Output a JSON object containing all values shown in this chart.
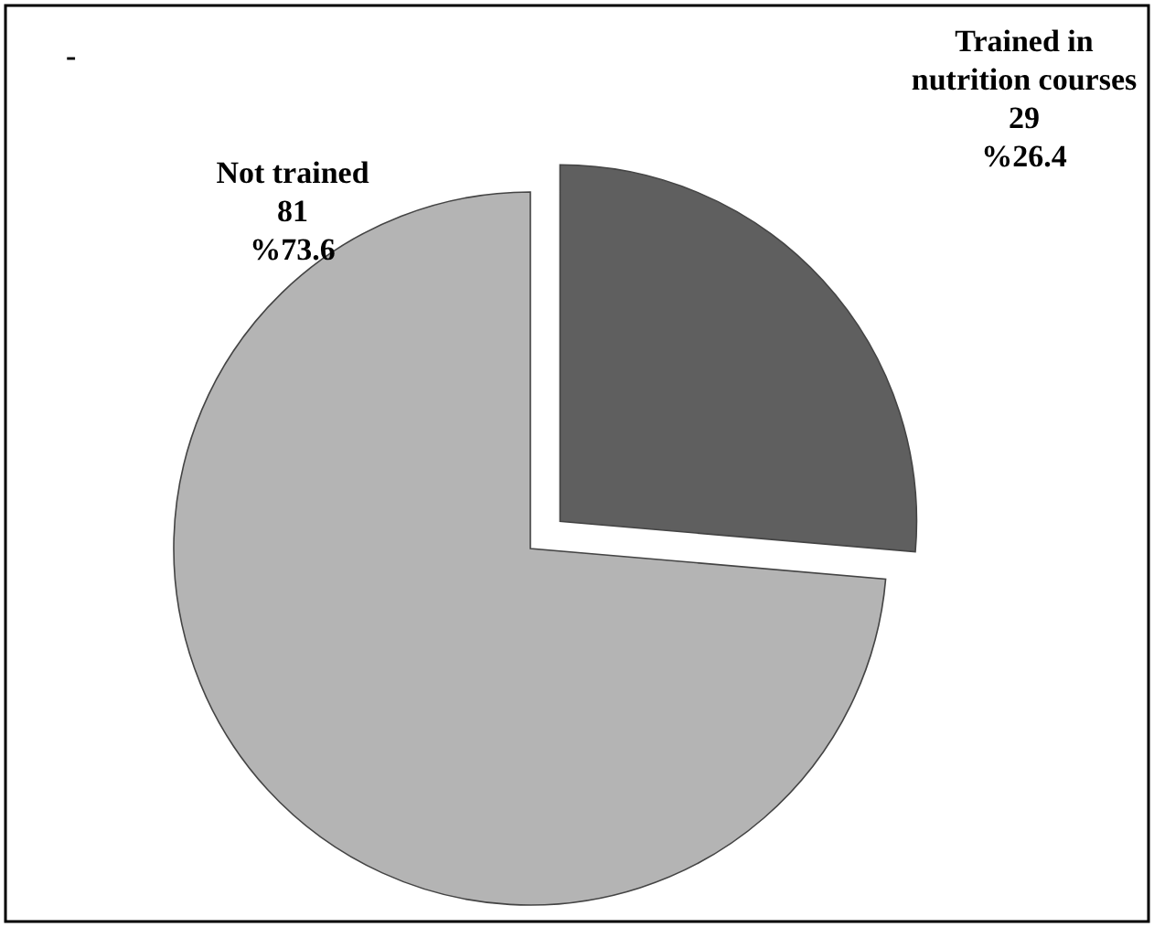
{
  "chart_data": {
    "type": "pie",
    "categories": [
      "Trained in nutrition courses",
      "Not trained"
    ],
    "values": [
      29,
      81
    ],
    "colors": [
      "#5f5f5f",
      "#b4b4b4"
    ],
    "value_labels": [
      "29\n%26.4",
      "81\n%73.6"
    ],
    "annotations": [
      "-"
    ],
    "legend": false
  }
}
